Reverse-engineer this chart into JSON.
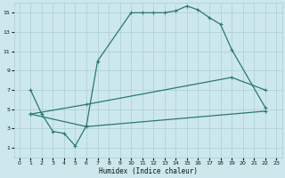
{
  "xlabel": "Humidex (Indice chaleur)",
  "bg_color": "#cce8ed",
  "grid_color": "#aacdd5",
  "line_color": "#2a7a6a",
  "xlim": [
    -0.5,
    23.5
  ],
  "ylim": [
    0,
    16
  ],
  "xticks": [
    0,
    1,
    2,
    3,
    4,
    5,
    6,
    7,
    8,
    9,
    10,
    11,
    12,
    13,
    14,
    15,
    16,
    17,
    18,
    19,
    20,
    21,
    22,
    23
  ],
  "yticks": [
    1,
    3,
    5,
    7,
    9,
    11,
    13,
    15
  ],
  "series": [
    {
      "x": [
        1,
        2,
        3,
        4,
        5,
        6,
        7,
        10,
        11,
        12,
        13,
        14,
        15,
        16,
        17,
        18,
        19,
        22
      ],
      "y": [
        7,
        4.5,
        2.7,
        2.5,
        1.2,
        3.3,
        10.0,
        15.0,
        15.0,
        15.0,
        15.0,
        15.2,
        15.7,
        15.3,
        14.5,
        13.8,
        11.2,
        5.2
      ],
      "lw": 0.9,
      "ls": "-"
    },
    {
      "x": [
        1,
        6,
        19,
        22
      ],
      "y": [
        4.5,
        5.5,
        8.3,
        7.0
      ],
      "lw": 0.9,
      "ls": "-"
    },
    {
      "x": [
        1,
        6,
        22
      ],
      "y": [
        4.5,
        3.2,
        4.8
      ],
      "lw": 0.9,
      "ls": "-"
    }
  ]
}
